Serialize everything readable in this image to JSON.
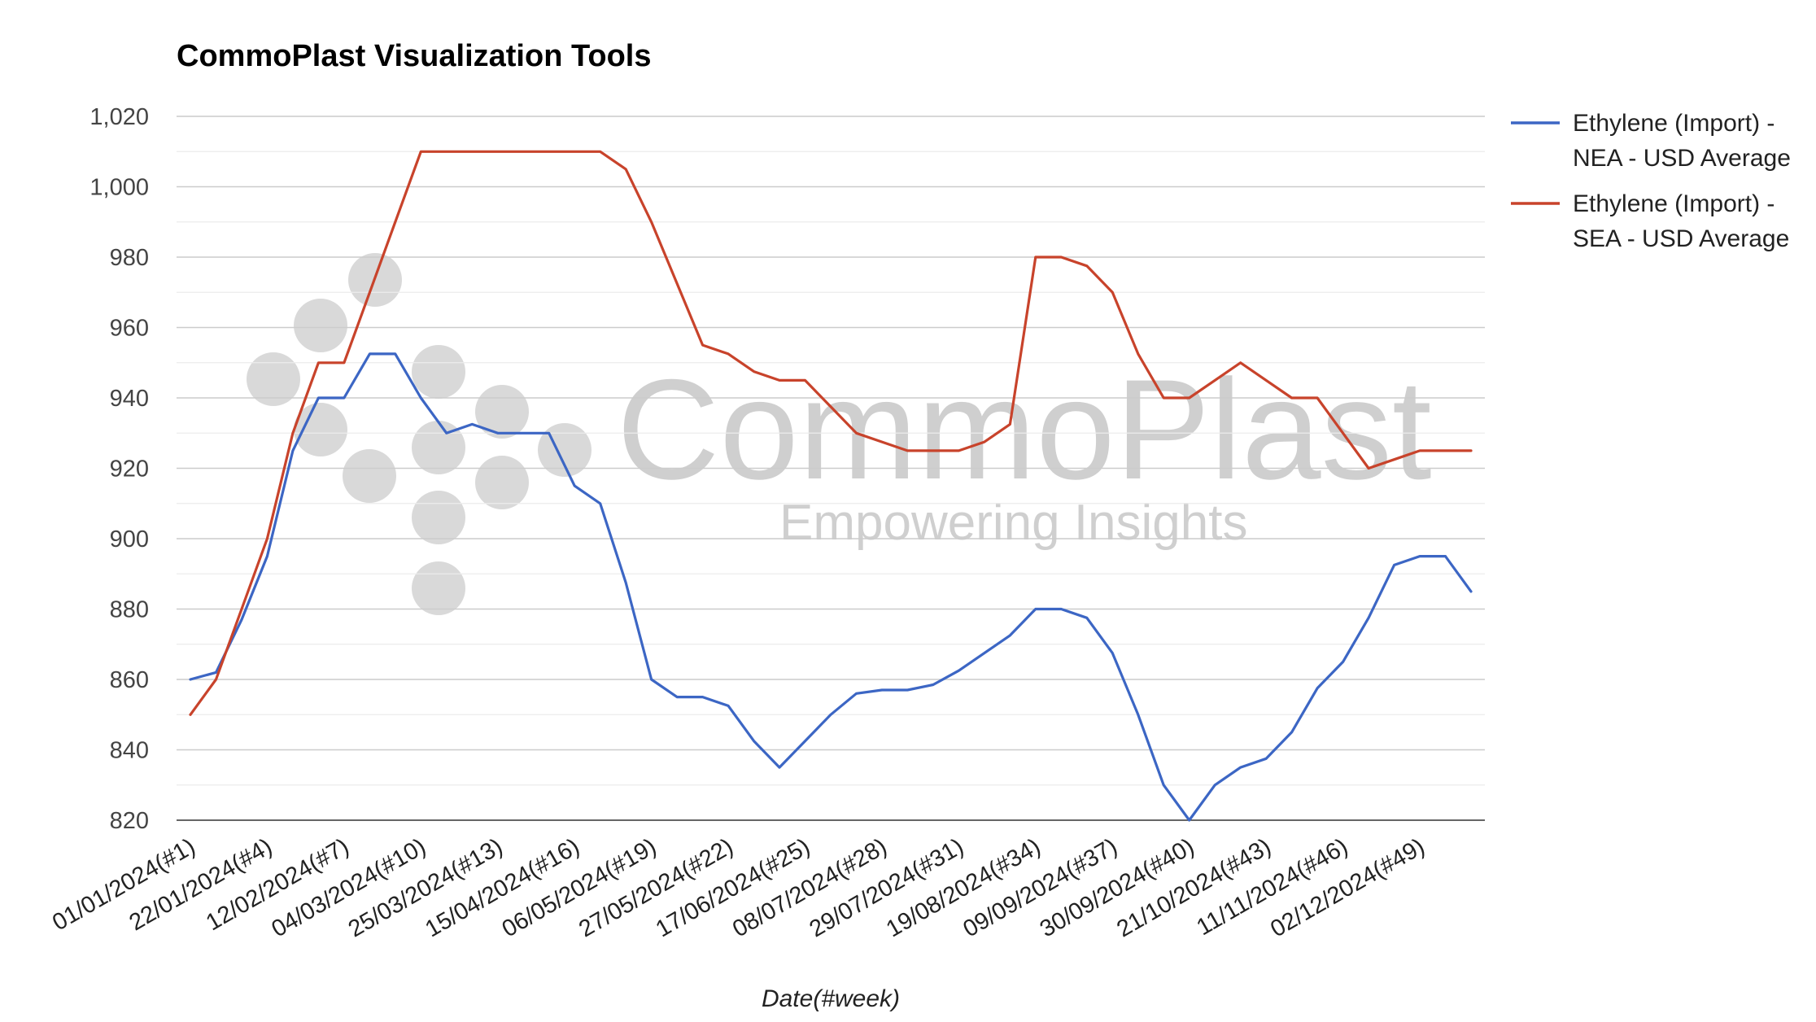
{
  "chart_data": {
    "type": "line",
    "title": "CommoPlast Visualization Tools",
    "xlabel": "Date(#week)",
    "ylabel": "",
    "ylim": [
      820,
      1020
    ],
    "yticks": [
      820,
      840,
      860,
      880,
      900,
      920,
      940,
      960,
      980,
      1000,
      1020
    ],
    "ytick_labels": [
      "820",
      "840",
      "860",
      "880",
      "900",
      "920",
      "940",
      "960",
      "980",
      "1,000",
      "1,020"
    ],
    "grid": true,
    "legend_position": "right",
    "watermark": {
      "brand": "CommoPlast",
      "tagline": "Empowering Insights"
    },
    "x": [
      "01/01/2024(#1)",
      "08/01/2024(#2)",
      "15/01/2024(#3)",
      "22/01/2024(#4)",
      "29/01/2024(#5)",
      "05/02/2024(#6)",
      "12/02/2024(#7)",
      "19/02/2024(#8)",
      "26/02/2024(#9)",
      "04/03/2024(#10)",
      "11/03/2024(#11)",
      "18/03/2024(#12)",
      "25/03/2024(#13)",
      "01/04/2024(#14)",
      "08/04/2024(#15)",
      "15/04/2024(#16)",
      "22/04/2024(#17)",
      "29/04/2024(#18)",
      "06/05/2024(#19)",
      "13/05/2024(#20)",
      "20/05/2024(#21)",
      "27/05/2024(#22)",
      "03/06/2024(#23)",
      "10/06/2024(#24)",
      "17/06/2024(#25)",
      "24/06/2024(#26)",
      "01/07/2024(#27)",
      "08/07/2024(#28)",
      "15/07/2024(#29)",
      "22/07/2024(#30)",
      "29/07/2024(#31)",
      "05/08/2024(#32)",
      "12/08/2024(#33)",
      "19/08/2024(#34)",
      "26/08/2024(#35)",
      "02/09/2024(#36)",
      "09/09/2024(#37)",
      "16/09/2024(#38)",
      "23/09/2024(#39)",
      "30/09/2024(#40)",
      "07/10/2024(#41)",
      "14/10/2024(#42)",
      "21/10/2024(#43)",
      "28/10/2024(#44)",
      "04/11/2024(#45)",
      "11/11/2024(#46)",
      "18/11/2024(#47)",
      "25/11/2024(#48)",
      "02/12/2024(#49)",
      "09/12/2024(#50)",
      "16/12/2024(#51)"
    ],
    "x_tick_labels": [
      "01/01/2024(#1)",
      "22/01/2024(#4)",
      "12/02/2024(#7)",
      "04/03/2024(#10)",
      "25/03/2024(#13)",
      "15/04/2024(#16)",
      "06/05/2024(#19)",
      "27/05/2024(#22)",
      "17/06/2024(#25)",
      "08/07/2024(#28)",
      "29/07/2024(#31)",
      "19/08/2024(#34)",
      "09/09/2024(#37)",
      "30/09/2024(#40)",
      "21/10/2024(#43)",
      "11/11/2024(#46)",
      "02/12/2024(#49)"
    ],
    "series": [
      {
        "name_lines": [
          "Ethylene (Import) -",
          "NEA - USD Average"
        ],
        "color": "#3c66c4",
        "values": [
          860,
          862,
          877,
          895,
          925,
          940,
          940,
          952.5,
          952.5,
          940,
          930,
          932.5,
          930,
          930,
          930,
          915,
          910,
          887.5,
          860,
          855,
          855,
          852.5,
          842.5,
          835,
          842.5,
          850,
          856,
          857,
          857,
          858.5,
          862.5,
          867.5,
          872.5,
          880,
          880,
          877.5,
          867.5,
          850,
          830,
          820,
          830,
          835,
          837.5,
          845,
          857.5,
          865,
          877.5,
          892.5,
          895,
          895,
          885
        ]
      },
      {
        "name_lines": [
          "Ethylene (Import) -",
          "SEA - USD Average"
        ],
        "color": "#c8432b",
        "values": [
          850,
          860,
          880,
          900,
          930,
          950,
          950,
          970,
          990,
          1010,
          1010,
          1010,
          1010,
          1010,
          1010,
          1010,
          1010,
          1005,
          990,
          972.5,
          955,
          952.5,
          947.5,
          945,
          945,
          937.5,
          930,
          927.5,
          925,
          925,
          925,
          927.5,
          932.5,
          980,
          980,
          977.5,
          970,
          952.5,
          940,
          940,
          945,
          950,
          945,
          940,
          940,
          930,
          920,
          922.5,
          925,
          925,
          925
        ]
      }
    ]
  }
}
